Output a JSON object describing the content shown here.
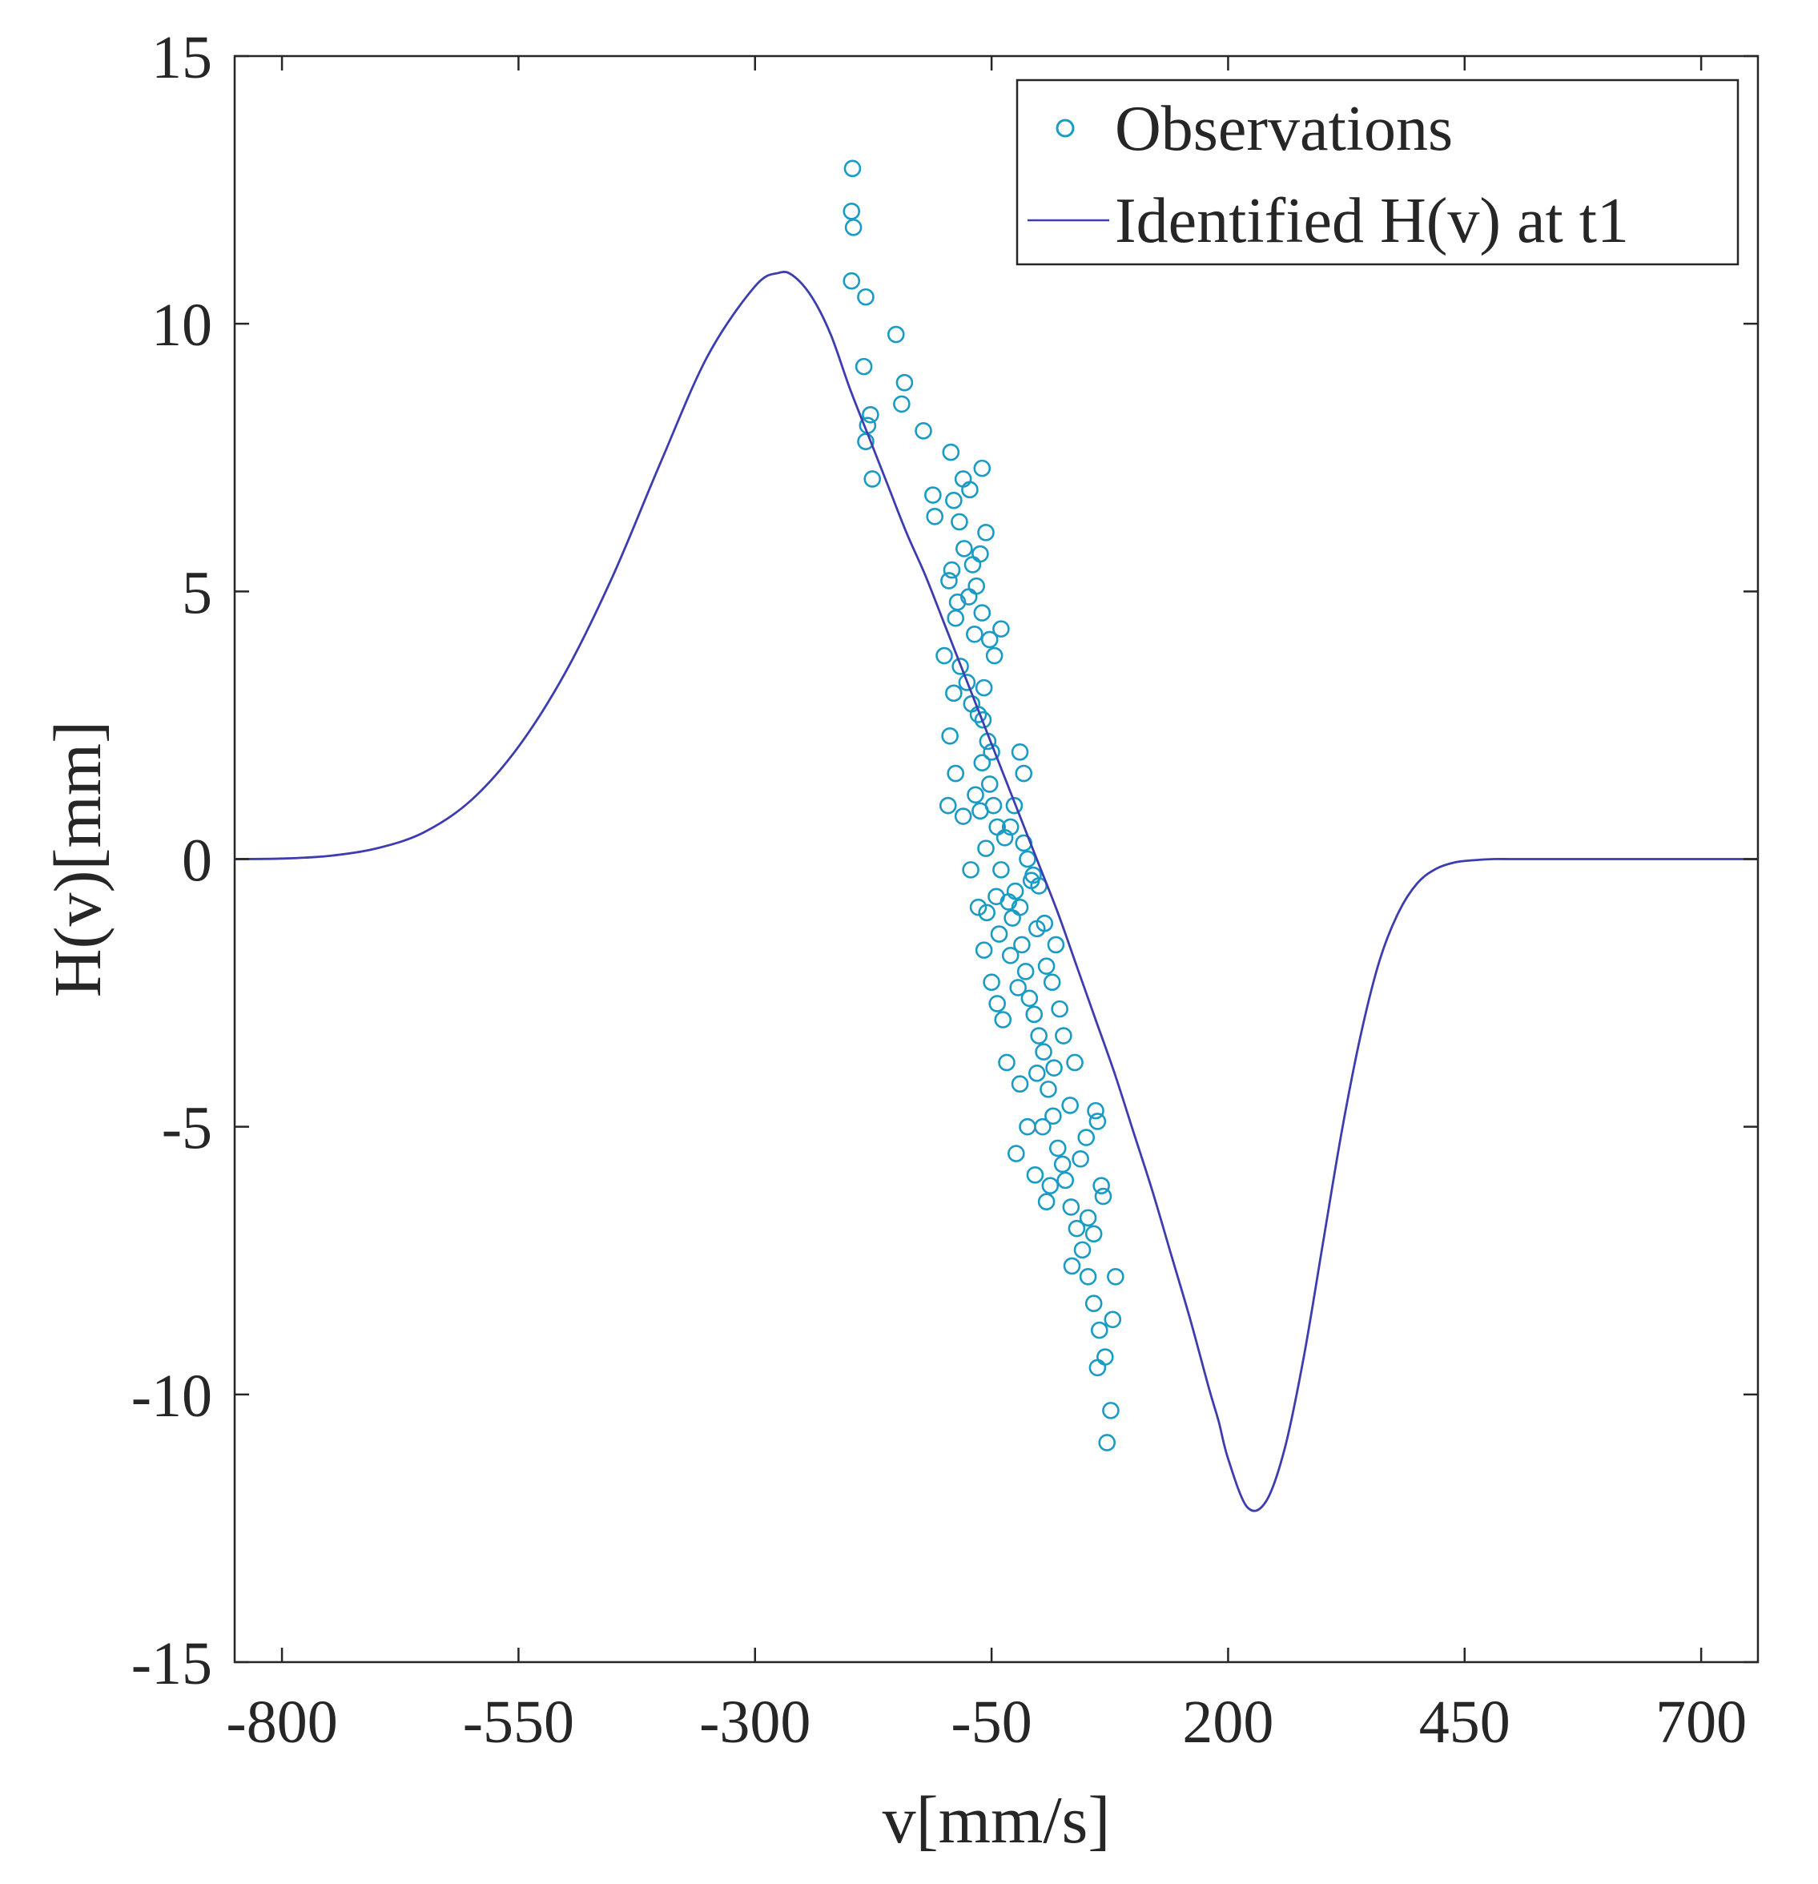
{
  "chart_data": {
    "type": "scatter",
    "title": "",
    "xlabel": "v[mm/s]",
    "ylabel": "H(v)[mm]",
    "xlim": [
      -850,
      760
    ],
    "ylim": [
      -15,
      15
    ],
    "xticks": [
      -800,
      -550,
      -300,
      -50,
      200,
      450,
      700
    ],
    "yticks": [
      -15,
      -10,
      -5,
      0,
      5,
      10,
      15
    ],
    "xtick_labels": [
      "-800",
      "-550",
      "-300",
      "-50",
      "200",
      "450",
      "700"
    ],
    "ytick_labels": [
      "-15",
      "-10",
      "-5",
      "0",
      "5",
      "10",
      "15"
    ],
    "grid": false,
    "legend_position": "top-right",
    "series": [
      {
        "name": "Observations",
        "kind": "scatter",
        "marker": "circle-open",
        "color": "#1a9bc6",
        "points": [
          [
            -197,
            12.9
          ],
          [
            -198,
            12.1
          ],
          [
            -196,
            11.8
          ],
          [
            -198,
            10.8
          ],
          [
            -183,
            10.5
          ],
          [
            -151,
            9.8
          ],
          [
            -185,
            9.2
          ],
          [
            -142,
            8.9
          ],
          [
            -178,
            8.3
          ],
          [
            -181,
            8.1
          ],
          [
            -145,
            8.5
          ],
          [
            -183,
            7.8
          ],
          [
            -176,
            7.1
          ],
          [
            -122,
            8.0
          ],
          [
            -93,
            7.6
          ],
          [
            -60,
            7.3
          ],
          [
            -80,
            7.1
          ],
          [
            -112,
            6.8
          ],
          [
            -110,
            6.4
          ],
          [
            -90,
            6.7
          ],
          [
            -73,
            6.9
          ],
          [
            -84,
            6.3
          ],
          [
            -92,
            5.4
          ],
          [
            -95,
            5.2
          ],
          [
            -79,
            5.8
          ],
          [
            -62,
            5.7
          ],
          [
            -74,
            4.9
          ],
          [
            -60,
            4.6
          ],
          [
            -68,
            4.2
          ],
          [
            -100,
            3.8
          ],
          [
            -88,
            4.5
          ],
          [
            -83,
            3.6
          ],
          [
            -76,
            3.3
          ],
          [
            -71,
            2.9
          ],
          [
            -59,
            2.6
          ],
          [
            -54,
            2.2
          ],
          [
            -60,
            1.8
          ],
          [
            -52,
            1.4
          ],
          [
            -48,
            1.0
          ],
          [
            -44,
            0.6
          ],
          [
            -62,
            0.9
          ],
          [
            -67,
            1.2
          ],
          [
            -56,
            0.2
          ],
          [
            -40,
            -0.2
          ],
          [
            -36,
            0.4
          ],
          [
            -45,
            -0.7
          ],
          [
            -55,
            -1.0
          ],
          [
            -42,
            -1.4
          ],
          [
            -30,
            -1.8
          ],
          [
            -28,
            -1.1
          ],
          [
            -25,
            -0.6
          ],
          [
            -20,
            -0.9
          ],
          [
            -18,
            -1.6
          ],
          [
            -14,
            -2.1
          ],
          [
            -10,
            -2.6
          ],
          [
            -22,
            -2.4
          ],
          [
            -5,
            -2.9
          ],
          [
            0,
            -3.3
          ],
          [
            5,
            -3.6
          ],
          [
            -2,
            -4.0
          ],
          [
            10,
            -4.3
          ],
          [
            15,
            -4.8
          ],
          [
            4,
            -5.0
          ],
          [
            20,
            -5.4
          ],
          [
            25,
            -5.7
          ],
          [
            12,
            -6.1
          ],
          [
            28,
            -6.0
          ],
          [
            34,
            -6.5
          ],
          [
            40,
            -6.9
          ],
          [
            46,
            -7.3
          ],
          [
            35,
            -7.6
          ],
          [
            52,
            -7.8
          ],
          [
            58,
            -8.3
          ],
          [
            64,
            -8.8
          ],
          [
            70,
            -9.3
          ],
          [
            62,
            -9.5
          ],
          [
            76,
            -10.3
          ],
          [
            72,
            -10.9
          ],
          [
            81,
            -7.8
          ],
          [
            78,
            -8.6
          ],
          [
            68,
            -6.3
          ],
          [
            66,
            -6.1
          ],
          [
            58,
            -7.0
          ],
          [
            52,
            -6.7
          ],
          [
            60,
            -4.7
          ],
          [
            62,
            -4.9
          ],
          [
            44,
            -5.6
          ],
          [
            50,
            -5.2
          ],
          [
            33,
            -4.6
          ],
          [
            38,
            -3.8
          ],
          [
            26,
            -3.3
          ],
          [
            22,
            -2.8
          ],
          [
            14,
            -2.3
          ],
          [
            8,
            -2.0
          ],
          [
            18,
            -1.6
          ],
          [
            6,
            -1.2
          ],
          [
            0,
            -0.5
          ],
          [
            -6,
            -0.3
          ],
          [
            -12,
            0.0
          ],
          [
            -30,
            0.6
          ],
          [
            -26,
            1.0
          ],
          [
            -16,
            0.3
          ],
          [
            -50,
            2.0
          ],
          [
            -64,
            2.7
          ],
          [
            -58,
            3.2
          ],
          [
            -47,
            3.8
          ],
          [
            -52,
            4.1
          ],
          [
            -40,
            4.3
          ],
          [
            -66,
            5.1
          ],
          [
            -70,
            5.5
          ],
          [
            -56,
            6.1
          ],
          [
            -86,
            4.8
          ],
          [
            -90,
            3.1
          ],
          [
            -94,
            2.3
          ],
          [
            -88,
            1.6
          ],
          [
            -96,
            1.0
          ],
          [
            -80,
            0.8
          ],
          [
            -72,
            -0.2
          ],
          [
            -64,
            -0.9
          ],
          [
            -58,
            -1.7
          ],
          [
            -50,
            -2.3
          ],
          [
            -38,
            -3.0
          ],
          [
            -34,
            -3.8
          ],
          [
            -20,
            -4.2
          ],
          [
            -12,
            -5.0
          ],
          [
            -24,
            -5.5
          ],
          [
            -4,
            -5.9
          ],
          [
            8,
            -6.4
          ],
          [
            -44,
            -2.7
          ],
          [
            -16,
            1.6
          ],
          [
            -20,
            2.0
          ],
          [
            -8,
            -0.4
          ],
          [
            -32,
            -0.8
          ],
          [
            -2,
            -1.3
          ],
          [
            16,
            -3.9
          ]
        ]
      },
      {
        "name": "Identified H(v) at t1",
        "kind": "line",
        "color": "#3d3db0",
        "x": [
          -850,
          -800,
          -750,
          -700,
          -650,
          -600,
          -550,
          -500,
          -450,
          -400,
          -350,
          -300,
          -275,
          -260,
          -240,
          -220,
          -200,
          -180,
          -160,
          -140,
          -120,
          -100,
          -80,
          -60,
          -40,
          -20,
          0,
          20,
          40,
          60,
          80,
          100,
          120,
          140,
          160,
          180,
          190,
          200,
          220,
          240,
          260,
          280,
          300,
          320,
          340,
          360,
          380,
          400,
          420,
          440,
          460,
          480,
          500,
          550,
          600,
          650,
          700,
          760
        ],
        "y": [
          0.0,
          0.01,
          0.06,
          0.2,
          0.5,
          1.1,
          2.1,
          3.5,
          5.3,
          7.4,
          9.4,
          10.7,
          10.95,
          10.9,
          10.5,
          9.8,
          8.8,
          7.9,
          7.0,
          6.1,
          5.3,
          4.4,
          3.5,
          2.6,
          1.7,
          0.8,
          -0.1,
          -1.0,
          -2.0,
          -3.0,
          -4.0,
          -5.1,
          -6.2,
          -7.4,
          -8.6,
          -9.9,
          -10.5,
          -11.2,
          -12.1,
          -12.0,
          -11.0,
          -9.3,
          -7.2,
          -5.1,
          -3.3,
          -1.9,
          -1.0,
          -0.45,
          -0.18,
          -0.06,
          -0.02,
          0.0,
          0.0,
          0.0,
          0.0,
          0.0,
          0.0,
          0.0
        ]
      }
    ]
  }
}
